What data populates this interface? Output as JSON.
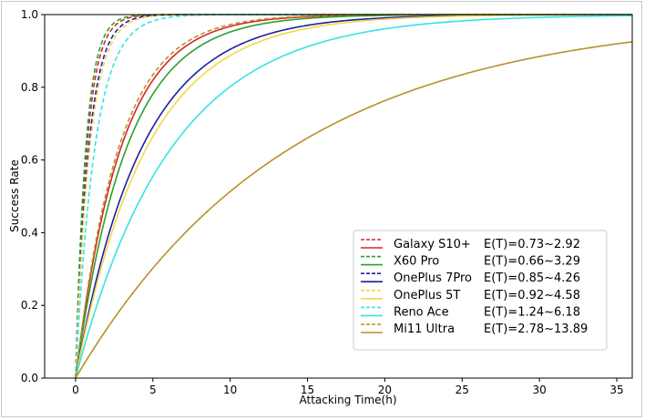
{
  "chart_data": {
    "type": "line",
    "title": "",
    "xlabel": "Attacking Time(h)",
    "ylabel": "Success Rate",
    "xlim": [
      -2,
      36
    ],
    "ylim": [
      0,
      1
    ],
    "xticks": [
      "0",
      "5",
      "10",
      "15",
      "20",
      "25",
      "30",
      "35"
    ],
    "xtick_values": [
      0,
      5,
      10,
      15,
      20,
      25,
      30,
      35
    ],
    "yticks": [
      "0.0",
      "0.2",
      "0.4",
      "0.6",
      "0.8",
      "1.0"
    ],
    "ytick_values": [
      0,
      0.2,
      0.4,
      0.6,
      0.8,
      1.0
    ],
    "grid": false,
    "legend_position": "lower-right",
    "model": "1 - exp(-t / E(T))",
    "series": [
      {
        "name": "Galaxy S10+",
        "label": "E(T)=0.73~2.92",
        "color": "#d62728",
        "et_low": 0.73,
        "et_high": 2.92
      },
      {
        "name": "X60 Pro",
        "label": "E(T)=0.66~3.29",
        "color": "#2ca02c",
        "et_low": 0.66,
        "et_high": 3.29
      },
      {
        "name": "OnePlus 7Pro",
        "label": "E(T)=0.85~4.26",
        "color": "#1f1f9e",
        "et_low": 0.85,
        "et_high": 4.26
      },
      {
        "name": "OnePlus 5T",
        "label": "E(T)=0.92~4.58",
        "color": "#f0d84a",
        "et_low": 0.92,
        "et_high": 4.58
      },
      {
        "name": "Reno Ace",
        "label": "E(T)=1.24~6.18",
        "color": "#36e3e3",
        "et_low": 1.24,
        "et_high": 6.18
      },
      {
        "name": "Mi11 Ultra",
        "label": "E(T)=2.78~13.89",
        "color": "#b8902a",
        "et_low": 2.78,
        "et_high": 13.89
      }
    ]
  }
}
